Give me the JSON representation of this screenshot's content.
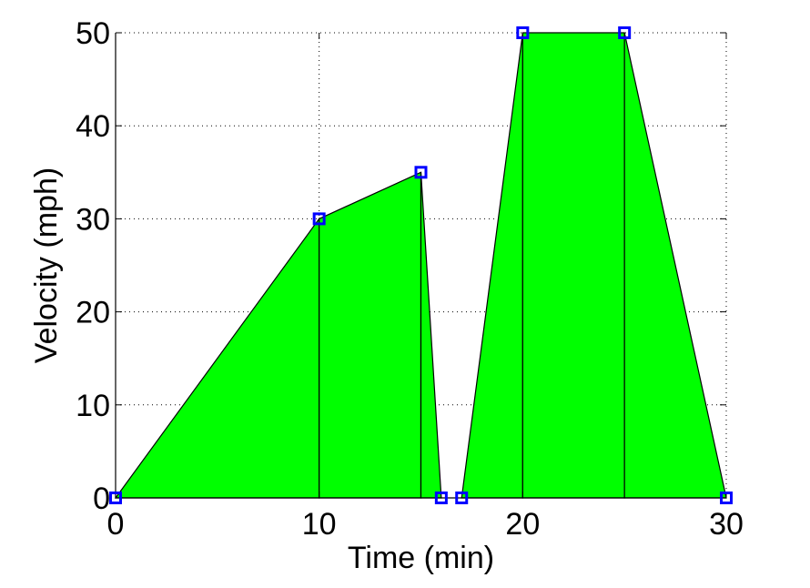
{
  "chart_data": {
    "type": "area",
    "xlabel": "Time (min)",
    "ylabel": "Velocity (mph)",
    "xlim": [
      0,
      30
    ],
    "ylim": [
      0,
      50
    ],
    "xticks": [
      0,
      10,
      20,
      30
    ],
    "yticks": [
      0,
      10,
      20,
      30,
      40,
      50
    ],
    "grid": true,
    "colors": {
      "fill": "#00ff00",
      "marker": "#0000ff",
      "edge": "#000000",
      "grid": "#000000"
    },
    "series": [
      {
        "x": [
          0,
          10,
          15,
          16,
          17,
          20,
          25,
          30
        ],
        "y": [
          0,
          30,
          35,
          0,
          0,
          50,
          50,
          0
        ]
      }
    ],
    "segments": [
      {
        "x": [
          0,
          10
        ],
        "y": [
          0,
          30
        ]
      },
      {
        "x": [
          10,
          15
        ],
        "y": [
          30,
          35
        ]
      },
      {
        "x": [
          15,
          16
        ],
        "y": [
          35,
          0
        ]
      },
      {
        "x": [
          17,
          20
        ],
        "y": [
          0,
          50
        ]
      },
      {
        "x": [
          20,
          25
        ],
        "y": [
          50,
          50
        ]
      },
      {
        "x": [
          25,
          30
        ],
        "y": [
          50,
          0
        ]
      }
    ]
  }
}
